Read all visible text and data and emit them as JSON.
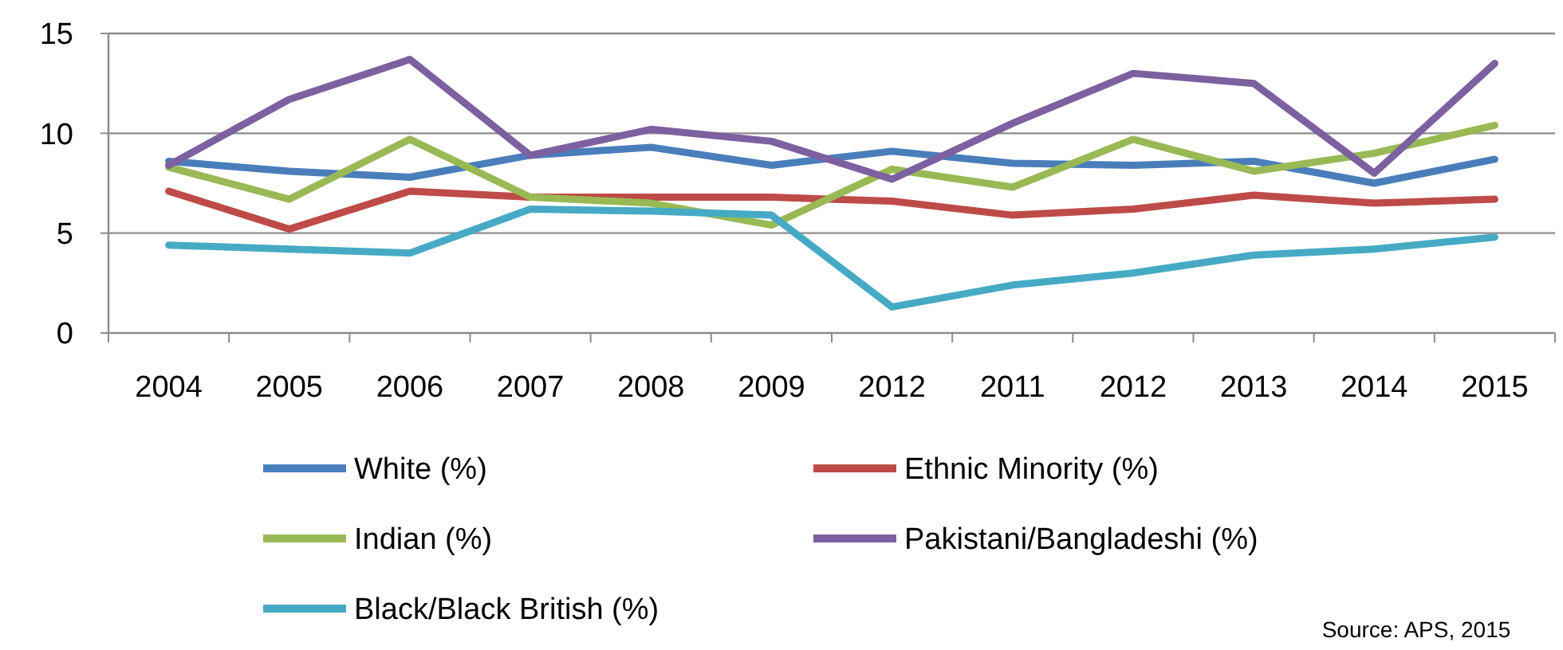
{
  "chart_data": {
    "type": "line",
    "categories": [
      "2004",
      "2005",
      "2006",
      "2007",
      "2008",
      "2009",
      "2012",
      "2011",
      "2012",
      "2013",
      "2014",
      "2015"
    ],
    "series": [
      {
        "name": "White (%)",
        "color": "#4a7ebb",
        "values": [
          8.6,
          8.1,
          7.8,
          8.9,
          9.3,
          8.4,
          9.1,
          8.5,
          8.4,
          8.6,
          7.5,
          8.7
        ]
      },
      {
        "name": "Ethnic Minority (%)",
        "color": "#be4b48",
        "values": [
          7.1,
          5.2,
          7.1,
          6.8,
          6.8,
          6.8,
          6.6,
          5.9,
          6.2,
          6.9,
          6.5,
          6.7
        ]
      },
      {
        "name": "Indian (%)",
        "color": "#98b954",
        "values": [
          8.3,
          6.7,
          9.7,
          6.8,
          6.5,
          5.4,
          8.2,
          7.3,
          9.7,
          8.1,
          9.0,
          10.4
        ]
      },
      {
        "name": "Pakistani/Bangladeshi (%)",
        "color": "#7d60a0",
        "values": [
          8.4,
          11.7,
          13.7,
          8.9,
          10.2,
          9.6,
          7.7,
          10.5,
          13.0,
          12.5,
          8.0,
          13.5
        ]
      },
      {
        "name": "Black/Black British (%)",
        "color": "#46aac5",
        "values": [
          4.4,
          4.2,
          4.0,
          6.2,
          6.1,
          5.9,
          1.3,
          2.4,
          3.0,
          3.9,
          4.2,
          4.8
        ]
      }
    ],
    "ylim": [
      0,
      15
    ],
    "yticks": [
      0,
      5,
      10,
      15
    ],
    "grid": "y",
    "legend": "bottom",
    "line_style": "solid",
    "marker": "none",
    "annotations": [
      "Source: APS, 2015"
    ]
  }
}
